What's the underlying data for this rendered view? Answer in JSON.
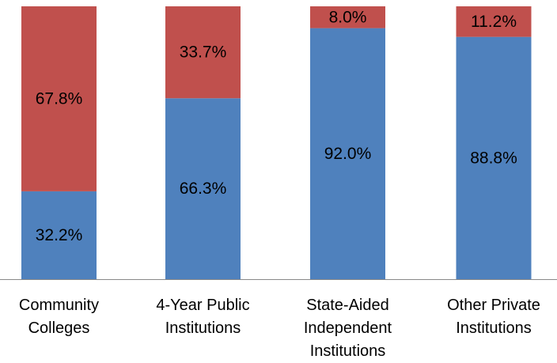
{
  "chart_data": {
    "type": "stacked_bar",
    "categories": [
      "Community Colleges",
      "4-Year Public Institutions",
      "State-Aided Independent Institutions",
      "Other Private Institutions"
    ],
    "series": [
      {
        "color": "#4f81bd",
        "values": [
          32.2,
          66.3,
          92.0,
          88.8
        ],
        "value_labels": [
          "32.2%",
          "66.3%",
          "92.0%",
          "88.8%"
        ]
      },
      {
        "color": "#c0504d",
        "values": [
          67.8,
          33.7,
          8.0,
          11.2
        ],
        "value_labels": [
          "67.8%",
          "33.7%",
          "8.0%",
          "11.2%"
        ]
      }
    ],
    "ylim": [
      0,
      100
    ]
  }
}
